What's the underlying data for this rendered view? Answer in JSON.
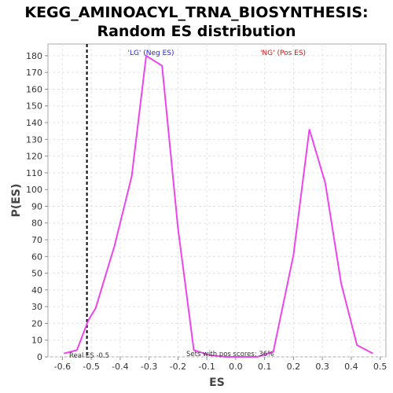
{
  "chart_data": {
    "type": "line",
    "title_lines": [
      "KEGG_AMINOACYL_TRNA_BIOSYNTHESIS:",
      "Random ES distribution"
    ],
    "xlabel": "ES",
    "ylabel": "P(ES)",
    "xlim": [
      -0.65,
      0.52
    ],
    "ylim": [
      0,
      187
    ],
    "x_ticks": [
      -0.6,
      -0.5,
      -0.4,
      -0.3,
      -0.2,
      -0.1,
      0.0,
      0.1,
      0.2,
      0.3,
      0.4,
      0.5
    ],
    "x_tick_labels": [
      "-0.6",
      "-0.5",
      "-0.4",
      "-0.3",
      "-0.2",
      "-0.1",
      "0.0",
      "0.1",
      "0.2",
      "0.3",
      "0.4",
      "0.5"
    ],
    "y_ticks": [
      0,
      10,
      20,
      30,
      40,
      50,
      60,
      70,
      80,
      90,
      100,
      110,
      120,
      130,
      140,
      150,
      160,
      170,
      180
    ],
    "y_tick_labels": [
      "0",
      "10",
      "20",
      "30",
      "40",
      "50",
      "60",
      "70",
      "80",
      "90",
      "100",
      "110",
      "120",
      "130",
      "140",
      "150",
      "160",
      "170",
      "180"
    ],
    "grid": true,
    "series_color": "#ee44ee",
    "series": [
      {
        "x": [
          -0.595,
          -0.55,
          -0.51,
          -0.485,
          -0.42,
          -0.36,
          -0.31,
          -0.255,
          -0.2,
          -0.145,
          -0.09,
          -0.035,
          0.02,
          0.075,
          0.13,
          0.2,
          0.255,
          0.31,
          0.365,
          0.42,
          0.475
        ],
        "y": [
          2,
          4,
          22,
          29,
          66,
          108,
          180,
          174,
          77,
          4,
          1,
          0,
          0,
          0,
          3,
          61,
          136,
          104,
          44,
          7,
          2
        ]
      }
    ],
    "real_es": {
      "x": -0.515,
      "label": "Real ES -0.5",
      "color": "#000000"
    },
    "annotations": {
      "neg_label": "'LG' (Neg ES)",
      "neg_color": "#2222dd",
      "pos_label": "'NG' (Pos ES)",
      "pos_color": "#dd1111",
      "pos_scores": "Sets with pos scores: 36%"
    }
  }
}
